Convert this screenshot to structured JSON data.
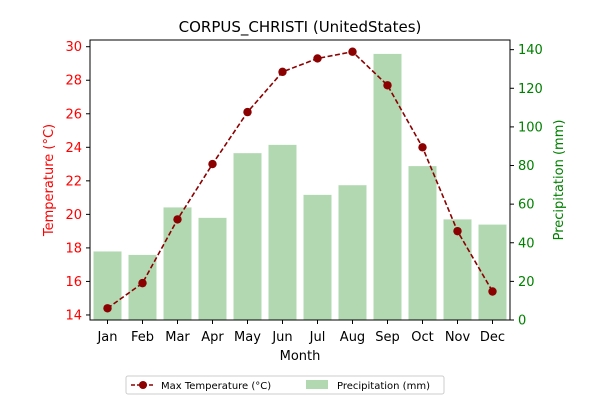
{
  "chart_data": {
    "type": "bar+line",
    "title": "CORPUS_CHRISTI (UnitedStates)",
    "xlabel": "Month",
    "categories": [
      "Jan",
      "Feb",
      "Mar",
      "Apr",
      "May",
      "Jun",
      "Jul",
      "Aug",
      "Sep",
      "Oct",
      "Nov",
      "Dec"
    ],
    "left_axis": {
      "label": "Temperature (°C)",
      "ylim": [
        13.7,
        30.4
      ],
      "ticks": [
        14,
        16,
        18,
        20,
        22,
        24,
        26,
        28,
        30
      ],
      "color": "#ff0000"
    },
    "right_axis": {
      "label": "Precipitation (mm)",
      "ylim": [
        0,
        145
      ],
      "ticks": [
        0,
        20,
        40,
        60,
        80,
        100,
        120,
        140
      ],
      "color": "#008000"
    },
    "series": [
      {
        "name": "Max Temperature (°C)",
        "type": "line",
        "axis": "left",
        "color": "#8b0000",
        "values": [
          14.4,
          15.9,
          19.7,
          23.0,
          26.1,
          28.5,
          29.3,
          29.7,
          27.7,
          24.0,
          19.0,
          15.4
        ]
      },
      {
        "name": "Precipitation (mm)",
        "type": "bar",
        "axis": "right",
        "color": "#b2d8b2",
        "values": [
          35.5,
          33.7,
          58.3,
          52.9,
          86.4,
          90.7,
          64.8,
          69.8,
          137.8,
          79.7,
          52.1,
          49.4
        ]
      }
    ],
    "legend_position": "bottom-center",
    "grid": false
  }
}
